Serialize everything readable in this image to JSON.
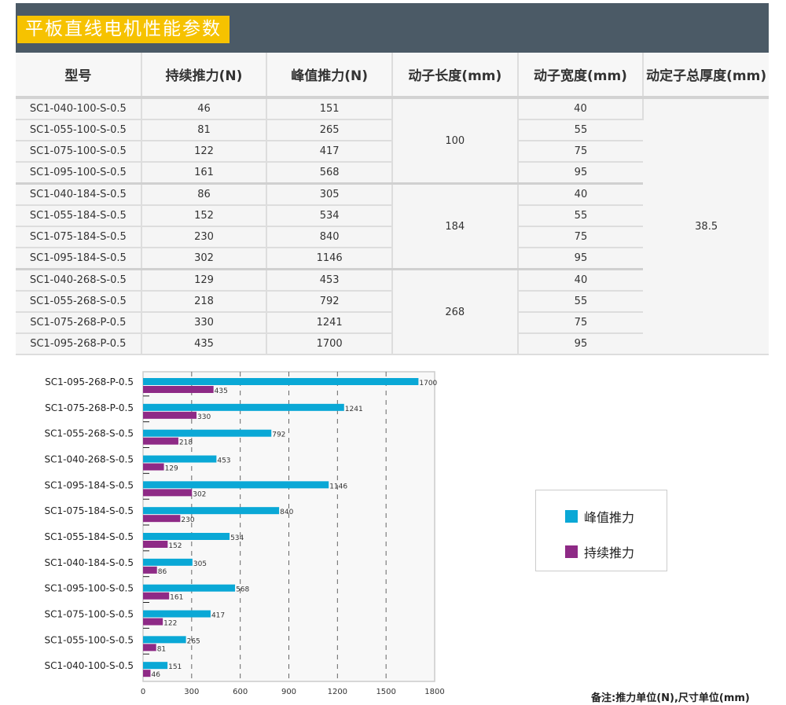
{
  "title": "平板直线电机性能参数",
  "table": {
    "headers": [
      "型号",
      "持续推力(N)",
      "峰值推力(N)",
      "动子长度(mm)",
      "动子宽度(mm)",
      "动定子总厚度(mm)"
    ],
    "rows": [
      [
        "SC1-040-100-S-0.5",
        "46",
        "151",
        "40"
      ],
      [
        "SC1-055-100-S-0.5",
        "81",
        "265",
        "55"
      ],
      [
        "SC1-075-100-S-0.5",
        "122",
        "417",
        "75"
      ],
      [
        "SC1-095-100-S-0.5",
        "161",
        "568",
        "95"
      ],
      [
        "SC1-040-184-S-0.5",
        "86",
        "305",
        "40"
      ],
      [
        "SC1-055-184-S-0.5",
        "152",
        "534",
        "55"
      ],
      [
        "SC1-075-184-S-0.5",
        "230",
        "840",
        "75"
      ],
      [
        "SC1-095-184-S-0.5",
        "302",
        "1146",
        "95"
      ],
      [
        "SC1-040-268-S-0.5",
        "129",
        "453",
        "40"
      ],
      [
        "SC1-055-268-S-0.5",
        "218",
        "792",
        "55"
      ],
      [
        "SC1-075-268-P-0.5",
        "330",
        "1241",
        "75"
      ],
      [
        "SC1-095-268-P-0.5",
        "435",
        "1700",
        "95"
      ]
    ],
    "mover_lengths": [
      "100",
      "184",
      "268"
    ],
    "total_thickness": "38.5"
  },
  "chart_data": {
    "type": "bar",
    "orientation": "horizontal",
    "categories": [
      "SC1-095-268-P-0.5",
      "SC1-075-268-P-0.5",
      "SC1-055-268-S-0.5",
      "SC1-040-268-S-0.5",
      "SC1-095-184-S-0.5",
      "SC1-075-184-S-0.5",
      "SC1-055-184-S-0.5",
      "SC1-040-184-S-0.5",
      "SC1-095-100-S-0.5",
      "SC1-075-100-S-0.5",
      "SC1-055-100-S-0.5",
      "SC1-040-100-S-0.5"
    ],
    "series": [
      {
        "name": "峰值推力",
        "color": "#0aa8d6",
        "values": [
          1700,
          1241,
          792,
          453,
          1146,
          840,
          534,
          305,
          568,
          417,
          265,
          151
        ]
      },
      {
        "name": "持续推力",
        "color": "#8e2a86",
        "values": [
          435,
          330,
          218,
          129,
          302,
          230,
          152,
          86,
          161,
          122,
          81,
          46
        ]
      }
    ],
    "xlim": [
      0,
      1800
    ],
    "xticks": [
      "0",
      "300",
      "600",
      "900",
      "1200",
      "1500",
      "1800"
    ],
    "grid": "vertical dashed",
    "legend": "right"
  },
  "note": "备注:推力单位(N),尺寸单位(mm)"
}
